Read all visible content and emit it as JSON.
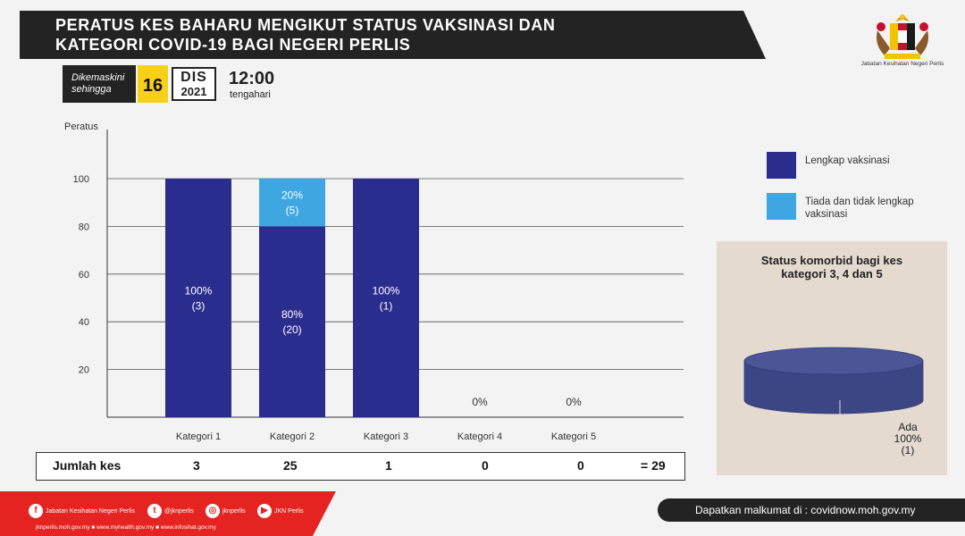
{
  "header": {
    "title_line1": "PERATUS KES BAHARU MENGIKUT STATUS VAKSINASI  DAN",
    "title_line2": "KATEGORI COVID-19 BAGI NEGERI PERLIS",
    "logo_caption": "Jabatan Kesihatan Negeri Perlis"
  },
  "update": {
    "label_line1": "Dikemaskini",
    "label_line2": "sehingga",
    "day": "16",
    "month": "DIS",
    "year": "2021",
    "time": "12:00",
    "time_note": "tengahari"
  },
  "colors": {
    "complete": "#2b2d8e",
    "incomplete": "#3ea6e0",
    "pie_top": "#4b5598",
    "pie_side": "#3d4685",
    "banner": "#232323",
    "footer_red": "#e52421"
  },
  "chart_data": {
    "type": "bar",
    "stacked": true,
    "ylabel": "Peratus",
    "ylim": [
      0,
      100
    ],
    "yticks": [
      20,
      40,
      60,
      80,
      100
    ],
    "grid": true,
    "categories": [
      "Kategori 1",
      "Kategori 2",
      "Kategori 3",
      "Kategori 4",
      "Kategori 5"
    ],
    "series": [
      {
        "name": "Lengkap vaksinasi",
        "values": [
          100,
          80,
          100,
          0,
          0
        ],
        "labels": [
          "100%",
          "80%",
          "100%",
          "",
          ""
        ],
        "counts": [
          "(3)",
          "(20)",
          "(1)",
          "",
          ""
        ]
      },
      {
        "name": "Tiada dan tidak lengkap vaksinasi",
        "values": [
          0,
          20,
          0,
          0,
          0
        ],
        "labels": [
          "",
          "20%",
          "",
          "",
          ""
        ],
        "counts": [
          "",
          "(5)",
          "",
          "",
          ""
        ]
      }
    ],
    "zero_labels": [
      "",
      "",
      "",
      "0%",
      "0%"
    ],
    "legend_position": "right"
  },
  "legend": [
    {
      "label": "Lengkap vaksinasi",
      "color": "#2b2d8e"
    },
    {
      "label": "Tiada dan tidak lengkap vaksinasi",
      "color": "#3ea6e0"
    }
  ],
  "totals": {
    "label": "Jumlah kes",
    "values": [
      "3",
      "25",
      "1",
      "0",
      "0"
    ],
    "sum": "= 29"
  },
  "comorbid": {
    "title_line1": "Status komorbid bagi kes",
    "title_line2": "kategori 3, 4 dan 5",
    "pie": {
      "type": "pie",
      "slices": [
        {
          "name": "Ada",
          "value": 100
        }
      ]
    },
    "label_name": "Ada",
    "label_pct": "100%",
    "label_count": "(1)"
  },
  "footer": {
    "social": [
      "Jabatan Kesihatan Negeri Perlis",
      "@jknperlis",
      "jknperlis",
      "JKN Perlis"
    ],
    "links": "jknperlis.moh.gov.my ■ www.myhealth.gov.my ■ www.infosihat.gov.my",
    "right_text": "Dapatkan malkumat di : covidnow.moh.gov.my"
  }
}
